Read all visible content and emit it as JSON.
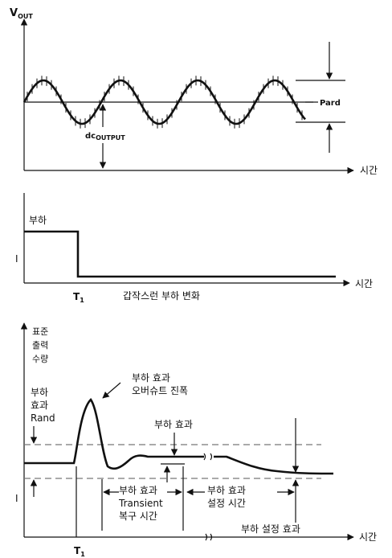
{
  "panel1": {
    "y_label_main": "V",
    "y_label_sub": "OUT",
    "x_label": "시간",
    "pard_label": "Pard",
    "dc_label_main": "dc",
    "dc_label_sub": "OUTPUT"
  },
  "panel2": {
    "load_label": "부하",
    "current_label": "I",
    "t1_main": "T",
    "t1_sub": "1",
    "x_label": "시간",
    "caption": "갑작스런 부하 변화"
  },
  "panel3": {
    "y_label_lines": [
      "표준",
      "출력",
      "수량"
    ],
    "rand_lines": [
      "부하",
      "효과",
      "Rand"
    ],
    "overshoot_lines": [
      "부하 효과",
      "오버슈트 진폭"
    ],
    "load_effect_label": "부하 효과",
    "recovery_lines": [
      "부하 효과",
      "Transient",
      "복구 시간"
    ],
    "settling_lines": [
      "부하 효과",
      "설정 시간"
    ],
    "settling_effect_label": "부하 설정 효과",
    "current_label": "I",
    "t1_main": "T",
    "t1_sub": "1",
    "x_label": "시간"
  }
}
